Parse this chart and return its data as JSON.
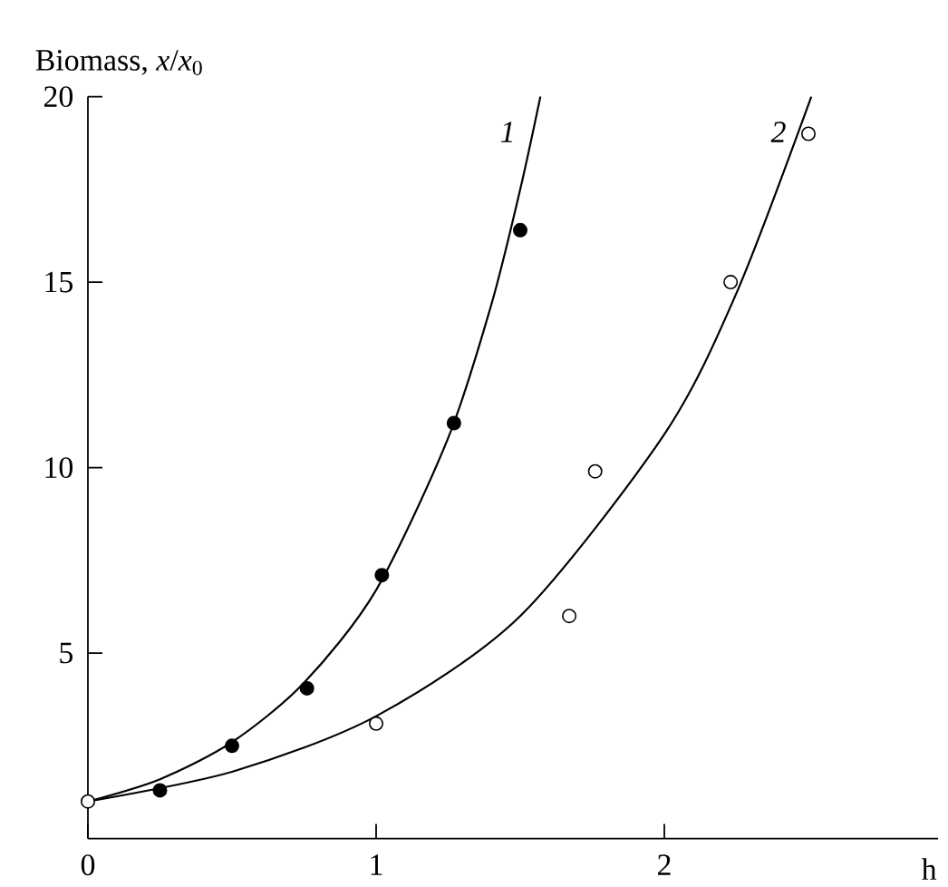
{
  "chart_data": {
    "type": "scatter",
    "xlabel": "h",
    "ylabel": "Biomass, *x*/*x*$_{0}$",
    "xlim": [
      0,
      2.95
    ],
    "ylim": [
      0,
      20
    ],
    "xticks": [
      0,
      1,
      2
    ],
    "yticks": [
      5,
      10,
      15,
      20
    ],
    "marker": "circle",
    "grid": false,
    "legend": false,
    "series": [
      {
        "type": "line",
        "name": "1",
        "color": "#000000",
        "marker": "none",
        "x": [
          0,
          0.25,
          0.5,
          0.75,
          1,
          1.25,
          1.4,
          1.5,
          1.57
        ],
        "values": [
          1,
          1.6,
          2.6,
          4.2,
          6.7,
          10.8,
          14.4,
          17.5,
          20
        ]
      },
      {
        "type": "line",
        "name": "2",
        "color": "#000000",
        "marker": "none",
        "x": [
          0,
          0.5,
          1,
          1.5,
          2,
          2.25,
          2.51
        ],
        "values": [
          1,
          1.8,
          3.3,
          6.0,
          10.9,
          14.7,
          20
        ]
      },
      {
        "color": "#000000",
        "x": [
          0.25,
          0.5,
          0.76,
          1.02,
          1.27,
          1.5
        ],
        "values": [
          1.3,
          2.5,
          4.05,
          7.1,
          11.2,
          16.4
        ]
      },
      {
        "color": "#ffffff",
        "x": [
          0,
          1.0,
          1.67,
          1.76,
          2.23,
          2.5
        ],
        "values": [
          1.0,
          3.1,
          6.0,
          9.9,
          15.0,
          19.0
        ]
      }
    ]
  }
}
